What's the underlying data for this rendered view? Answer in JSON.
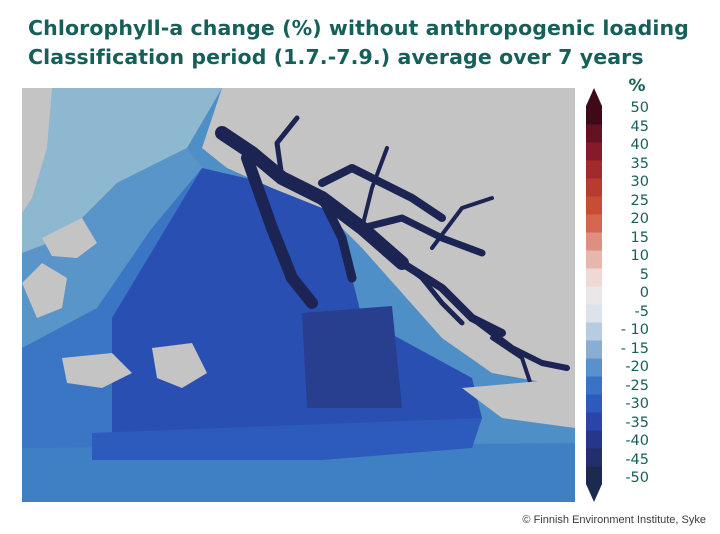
{
  "title": {
    "line1": "Chlorophyll-a change (%) without anthropogenic loading",
    "line2": "Classification period (1.7.-7.9.) average over 7 years"
  },
  "legend": {
    "unit": "%",
    "ticks": [
      "50",
      "45",
      "40",
      "35",
      "30",
      "25",
      "20",
      "15",
      "10",
      "5",
      "0",
      "-5",
      "- 10",
      "- 15",
      "-20",
      "-25",
      "-30",
      "-35",
      "-40",
      "-45",
      "-50"
    ],
    "range": [
      -50,
      50
    ],
    "colors": [
      "#1c2a52",
      "#222f6b",
      "#26368a",
      "#2a45a8",
      "#2c5bbd",
      "#3a72c5",
      "#5a90cb",
      "#88aed5",
      "#b7cce0",
      "#dde3ea",
      "#ebe7e7",
      "#efd8d6",
      "#e7b6ad",
      "#de8f80",
      "#d4684f",
      "#c84d35",
      "#b83b2e",
      "#a12a2c",
      "#86192a",
      "#631223",
      "#3f0a18"
    ]
  },
  "map": {
    "land_color": "#c4c4c4",
    "sea_colors": {
      "open_light": "#8db8d0",
      "open_mid": "#4f8fc7",
      "mid": "#3070c3",
      "dark": "#2a4fb3",
      "darker": "#283f8f",
      "inner_bay": "#1c2454"
    }
  },
  "credit": "© Finnish Environment Institute, Syke"
}
